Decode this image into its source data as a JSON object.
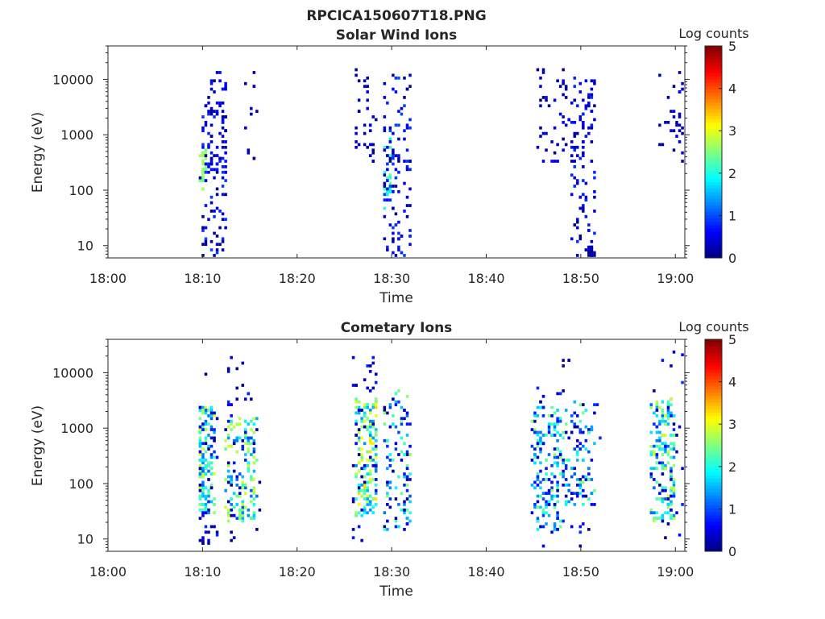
{
  "figure": {
    "title": "RPCICA150607T18.PNG"
  },
  "colormap": [
    "#00007f",
    "#0000ff",
    "#007fff",
    "#00ffff",
    "#7fff7f",
    "#ffff00",
    "#ff7f00",
    "#ff0000",
    "#7f0000"
  ],
  "chart_data": [
    {
      "type": "heatmap",
      "title": "Solar Wind Ions",
      "xlabel": "Time",
      "ylabel": "Energy (eV)",
      "x_ticks": [
        "18:00",
        "18:10",
        "18:20",
        "18:30",
        "18:40",
        "18:50",
        "19:00"
      ],
      "xlim_minutes": [
        0,
        61
      ],
      "y_scale": "log",
      "y_ticks": [
        "10",
        "100",
        "1000",
        "10000"
      ],
      "ylim_ev": [
        6,
        40000
      ],
      "colorbar": {
        "label": "Log counts",
        "range": [
          0,
          5
        ],
        "ticks": [
          "0",
          "1",
          "2",
          "3",
          "4",
          "5"
        ]
      },
      "clusters": [
        {
          "t": [
            9.8,
            10.5
          ],
          "e": [
            110,
            520
          ],
          "c": [
            2.3,
            2.8
          ],
          "n": 26
        },
        {
          "t": [
            9.8,
            12.6
          ],
          "e": [
            6,
            2500
          ],
          "c": [
            0.05,
            1.0
          ],
          "n": 85
        },
        {
          "t": [
            10.4,
            12.6
          ],
          "e": [
            180,
            14000
          ],
          "c": [
            0.1,
            0.8
          ],
          "n": 60
        },
        {
          "t": [
            14.5,
            15.8
          ],
          "e": [
            300,
            14000
          ],
          "c": [
            0.05,
            0.5
          ],
          "n": 12
        },
        {
          "t": [
            26.2,
            28.5
          ],
          "e": [
            300,
            15000
          ],
          "c": [
            0.05,
            0.6
          ],
          "n": 34
        },
        {
          "t": [
            29.3,
            29.9
          ],
          "e": [
            45,
            800
          ],
          "c": [
            1.8,
            2.4
          ],
          "n": 16
        },
        {
          "t": [
            29.2,
            32.0
          ],
          "e": [
            6,
            12000
          ],
          "c": [
            0.05,
            1.0
          ],
          "n": 115
        },
        {
          "t": [
            45.5,
            49.0
          ],
          "e": [
            300,
            17000
          ],
          "c": [
            0.05,
            0.7
          ],
          "n": 44
        },
        {
          "t": [
            49.0,
            51.5
          ],
          "e": [
            6,
            12000
          ],
          "c": [
            0.05,
            0.9
          ],
          "n": 110
        },
        {
          "t": [
            50.7,
            51.4
          ],
          "e": [
            6,
            10
          ],
          "c": [
            0.05,
            0.3
          ],
          "n": 8
        },
        {
          "t": [
            58.0,
            61.0
          ],
          "e": [
            300,
            14000
          ],
          "c": [
            0.05,
            0.6
          ],
          "n": 32
        }
      ]
    },
    {
      "type": "heatmap",
      "title": "Cometary Ions",
      "xlabel": "Time",
      "ylabel": "Energy (eV)",
      "x_ticks": [
        "18:00",
        "18:10",
        "18:20",
        "18:30",
        "18:40",
        "18:50",
        "19:00"
      ],
      "xlim_minutes": [
        0,
        61
      ],
      "y_scale": "log",
      "y_ticks": [
        "10",
        "100",
        "1000",
        "10000"
      ],
      "ylim_ev": [
        6,
        40000
      ],
      "colorbar": {
        "label": "Log counts",
        "range": [
          0,
          5
        ],
        "ticks": [
          "0",
          "1",
          "2",
          "3",
          "4",
          "5"
        ]
      },
      "clusters": [
        {
          "t": [
            9.6,
            11.3
          ],
          "e": [
            30,
            2500
          ],
          "c": [
            1.0,
            3.1
          ],
          "n": 130
        },
        {
          "t": [
            9.6,
            11.6
          ],
          "e": [
            7,
            4000
          ],
          "c": [
            0.05,
            0.9
          ],
          "n": 45
        },
        {
          "t": [
            12.5,
            15.8
          ],
          "e": [
            20,
            1500
          ],
          "c": [
            1.0,
            3.0
          ],
          "n": 150
        },
        {
          "t": [
            12.5,
            16.0
          ],
          "e": [
            7,
            7000
          ],
          "c": [
            0.05,
            0.9
          ],
          "n": 40
        },
        {
          "t": [
            10.0,
            14.5
          ],
          "e": [
            8000,
            22000
          ],
          "c": [
            0.05,
            0.4
          ],
          "n": 6
        },
        {
          "t": [
            26.2,
            28.5
          ],
          "e": [
            25,
            3500
          ],
          "c": [
            1.2,
            3.3
          ],
          "n": 170
        },
        {
          "t": [
            25.8,
            28.5
          ],
          "e": [
            7,
            25000
          ],
          "c": [
            0.05,
            0.8
          ],
          "n": 45
        },
        {
          "t": [
            29.2,
            32.0
          ],
          "e": [
            15,
            5000
          ],
          "c": [
            0.05,
            2.6
          ],
          "n": 110
        },
        {
          "t": [
            44.8,
            48.0
          ],
          "e": [
            15,
            2500
          ],
          "c": [
            0.6,
            2.6
          ],
          "n": 150
        },
        {
          "t": [
            44.8,
            52.0
          ],
          "e": [
            7,
            6000
          ],
          "c": [
            0.05,
            0.9
          ],
          "n": 70
        },
        {
          "t": [
            48.0,
            51.5
          ],
          "e": [
            40,
            3000
          ],
          "c": [
            0.5,
            2.5
          ],
          "n": 80
        },
        {
          "t": [
            47.8,
            49.5
          ],
          "e": [
            9000,
            18000
          ],
          "c": [
            0.05,
            0.3
          ],
          "n": 4
        },
        {
          "t": [
            57.5,
            60.0
          ],
          "e": [
            20,
            3500
          ],
          "c": [
            1.0,
            3.0
          ],
          "n": 150
        },
        {
          "t": [
            57.5,
            61.0
          ],
          "e": [
            7,
            30000
          ],
          "c": [
            0.05,
            0.9
          ],
          "n": 40
        }
      ]
    }
  ]
}
